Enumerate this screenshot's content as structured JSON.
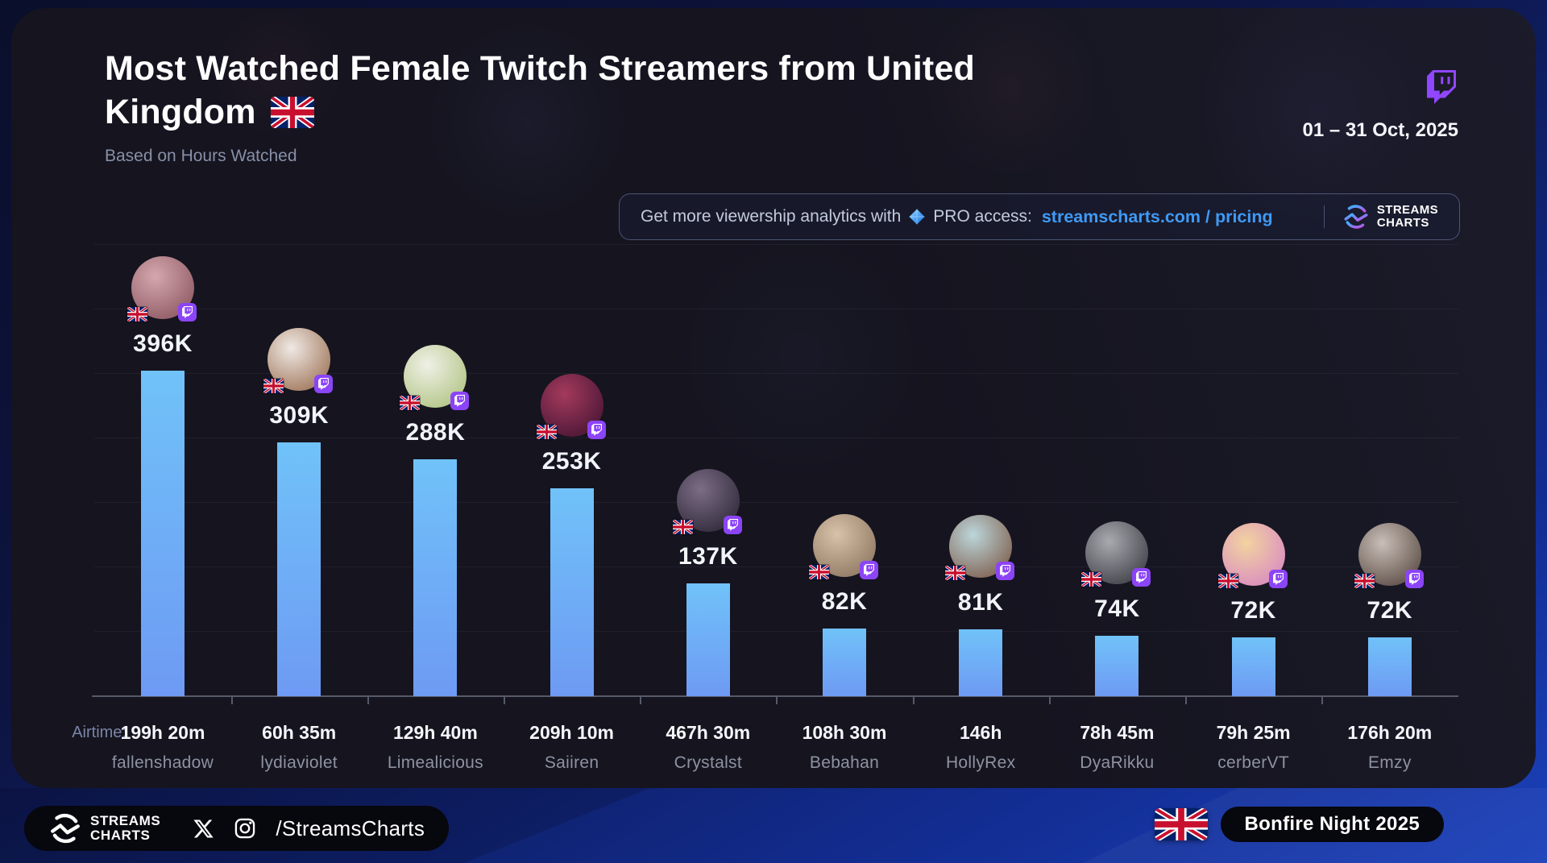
{
  "header": {
    "title_line1": "Most Watched Female Twitch Streamers from United",
    "title_line2": "Kingdom",
    "subtitle": "Based on Hours Watched",
    "date_range": "01 – 31 Oct, 2025"
  },
  "promo_banner": {
    "text_before_icon": "Get more viewership analytics with",
    "text_after_icon": "PRO access:",
    "link_text": "streamscharts.com / pricing",
    "brand_line1": "STREAMS",
    "brand_line2": "CHARTS"
  },
  "chart_data": {
    "type": "bar",
    "title": "Most Watched Female Twitch Streamers from United Kingdom",
    "subtitle": "Based on Hours Watched",
    "period": "01 – 31 Oct, 2025",
    "ylabel": "Hours Watched",
    "grid": true,
    "legend": false,
    "airtime_prefix": "Airtime:",
    "categories": [
      "fallenshadow",
      "lydiaviolet",
      "Limealicious",
      "Saiiren",
      "Crystalst",
      "Bebahan",
      "HollyRex",
      "DyaRikku",
      "cerberVT",
      "Emzy"
    ],
    "values": [
      396000,
      309000,
      288000,
      253000,
      137000,
      82000,
      81000,
      74000,
      72000,
      72000
    ],
    "value_labels": [
      "396K",
      "309K",
      "288K",
      "253K",
      "137K",
      "82K",
      "81K",
      "74K",
      "72K",
      "72K"
    ],
    "airtimes": [
      "199h 20m",
      "60h 35m",
      "129h 40m",
      "209h 10m",
      "467h 30m",
      "108h 30m",
      "146h",
      "78h 45m",
      "79h 25m",
      "176h 20m"
    ],
    "bar_color_top": "#70c2f9",
    "bar_color_bottom": "#6e9af3",
    "streamers": [
      {
        "rank": 1,
        "name": "fallenshadow",
        "hours_watched_label": "396K",
        "hours_watched": 396000,
        "airtime": "199h 20m",
        "avatar_colors": [
          "#d5a7ad",
          "#8a5560"
        ]
      },
      {
        "rank": 2,
        "name": "lydiaviolet",
        "hours_watched_label": "309K",
        "hours_watched": 309000,
        "airtime": "60h 35m",
        "avatar_colors": [
          "#efe9e4",
          "#9b6f52"
        ]
      },
      {
        "rank": 3,
        "name": "Limealicious",
        "hours_watched_label": "288K",
        "hours_watched": 288000,
        "airtime": "129h 40m",
        "avatar_colors": [
          "#eff0e6",
          "#aec27f"
        ]
      },
      {
        "rank": 4,
        "name": "Saiiren",
        "hours_watched_label": "253K",
        "hours_watched": 253000,
        "airtime": "209h 10m",
        "avatar_colors": [
          "#a43a5c",
          "#441433"
        ]
      },
      {
        "rank": 5,
        "name": "Crystalst",
        "hours_watched_label": "137K",
        "hours_watched": 137000,
        "airtime": "467h 30m",
        "avatar_colors": [
          "#7b6d85",
          "#2c2636"
        ]
      },
      {
        "rank": 6,
        "name": "Bebahan",
        "hours_watched_label": "82K",
        "hours_watched": 82000,
        "airtime": "108h 30m",
        "avatar_colors": [
          "#d8c2a8",
          "#8a745e"
        ]
      },
      {
        "rank": 7,
        "name": "HollyRex",
        "hours_watched_label": "81K",
        "hours_watched": 81000,
        "airtime": "146h",
        "avatar_colors": [
          "#bcd6da",
          "#7c5a48"
        ]
      },
      {
        "rank": 8,
        "name": "DyaRikku",
        "hours_watched_label": "74K",
        "hours_watched": 74000,
        "airtime": "78h 45m",
        "avatar_colors": [
          "#a9a9b0",
          "#3a3a42"
        ]
      },
      {
        "rank": 9,
        "name": "cerberVT",
        "hours_watched_label": "72K",
        "hours_watched": 72000,
        "airtime": "79h 25m",
        "avatar_colors": [
          "#f2d3a0",
          "#d887c2"
        ]
      },
      {
        "rank": 10,
        "name": "Emzy",
        "hours_watched_label": "72K",
        "hours_watched": 72000,
        "airtime": "176h 20m",
        "avatar_colors": [
          "#c9bfb8",
          "#564740"
        ]
      }
    ]
  },
  "footer": {
    "brand_line1": "STREAMS",
    "brand_line2": "CHARTS",
    "social_handle": "/StreamsCharts",
    "event_badge": "Bonfire Night 2025"
  },
  "colors": {
    "accent_link": "#3f9af5",
    "twitch_purple": "#9146ff",
    "bar_top": "#70c2f9",
    "bar_bottom": "#6e9af3",
    "card_bg": "#15141f",
    "pill_bg": "#07070e"
  }
}
